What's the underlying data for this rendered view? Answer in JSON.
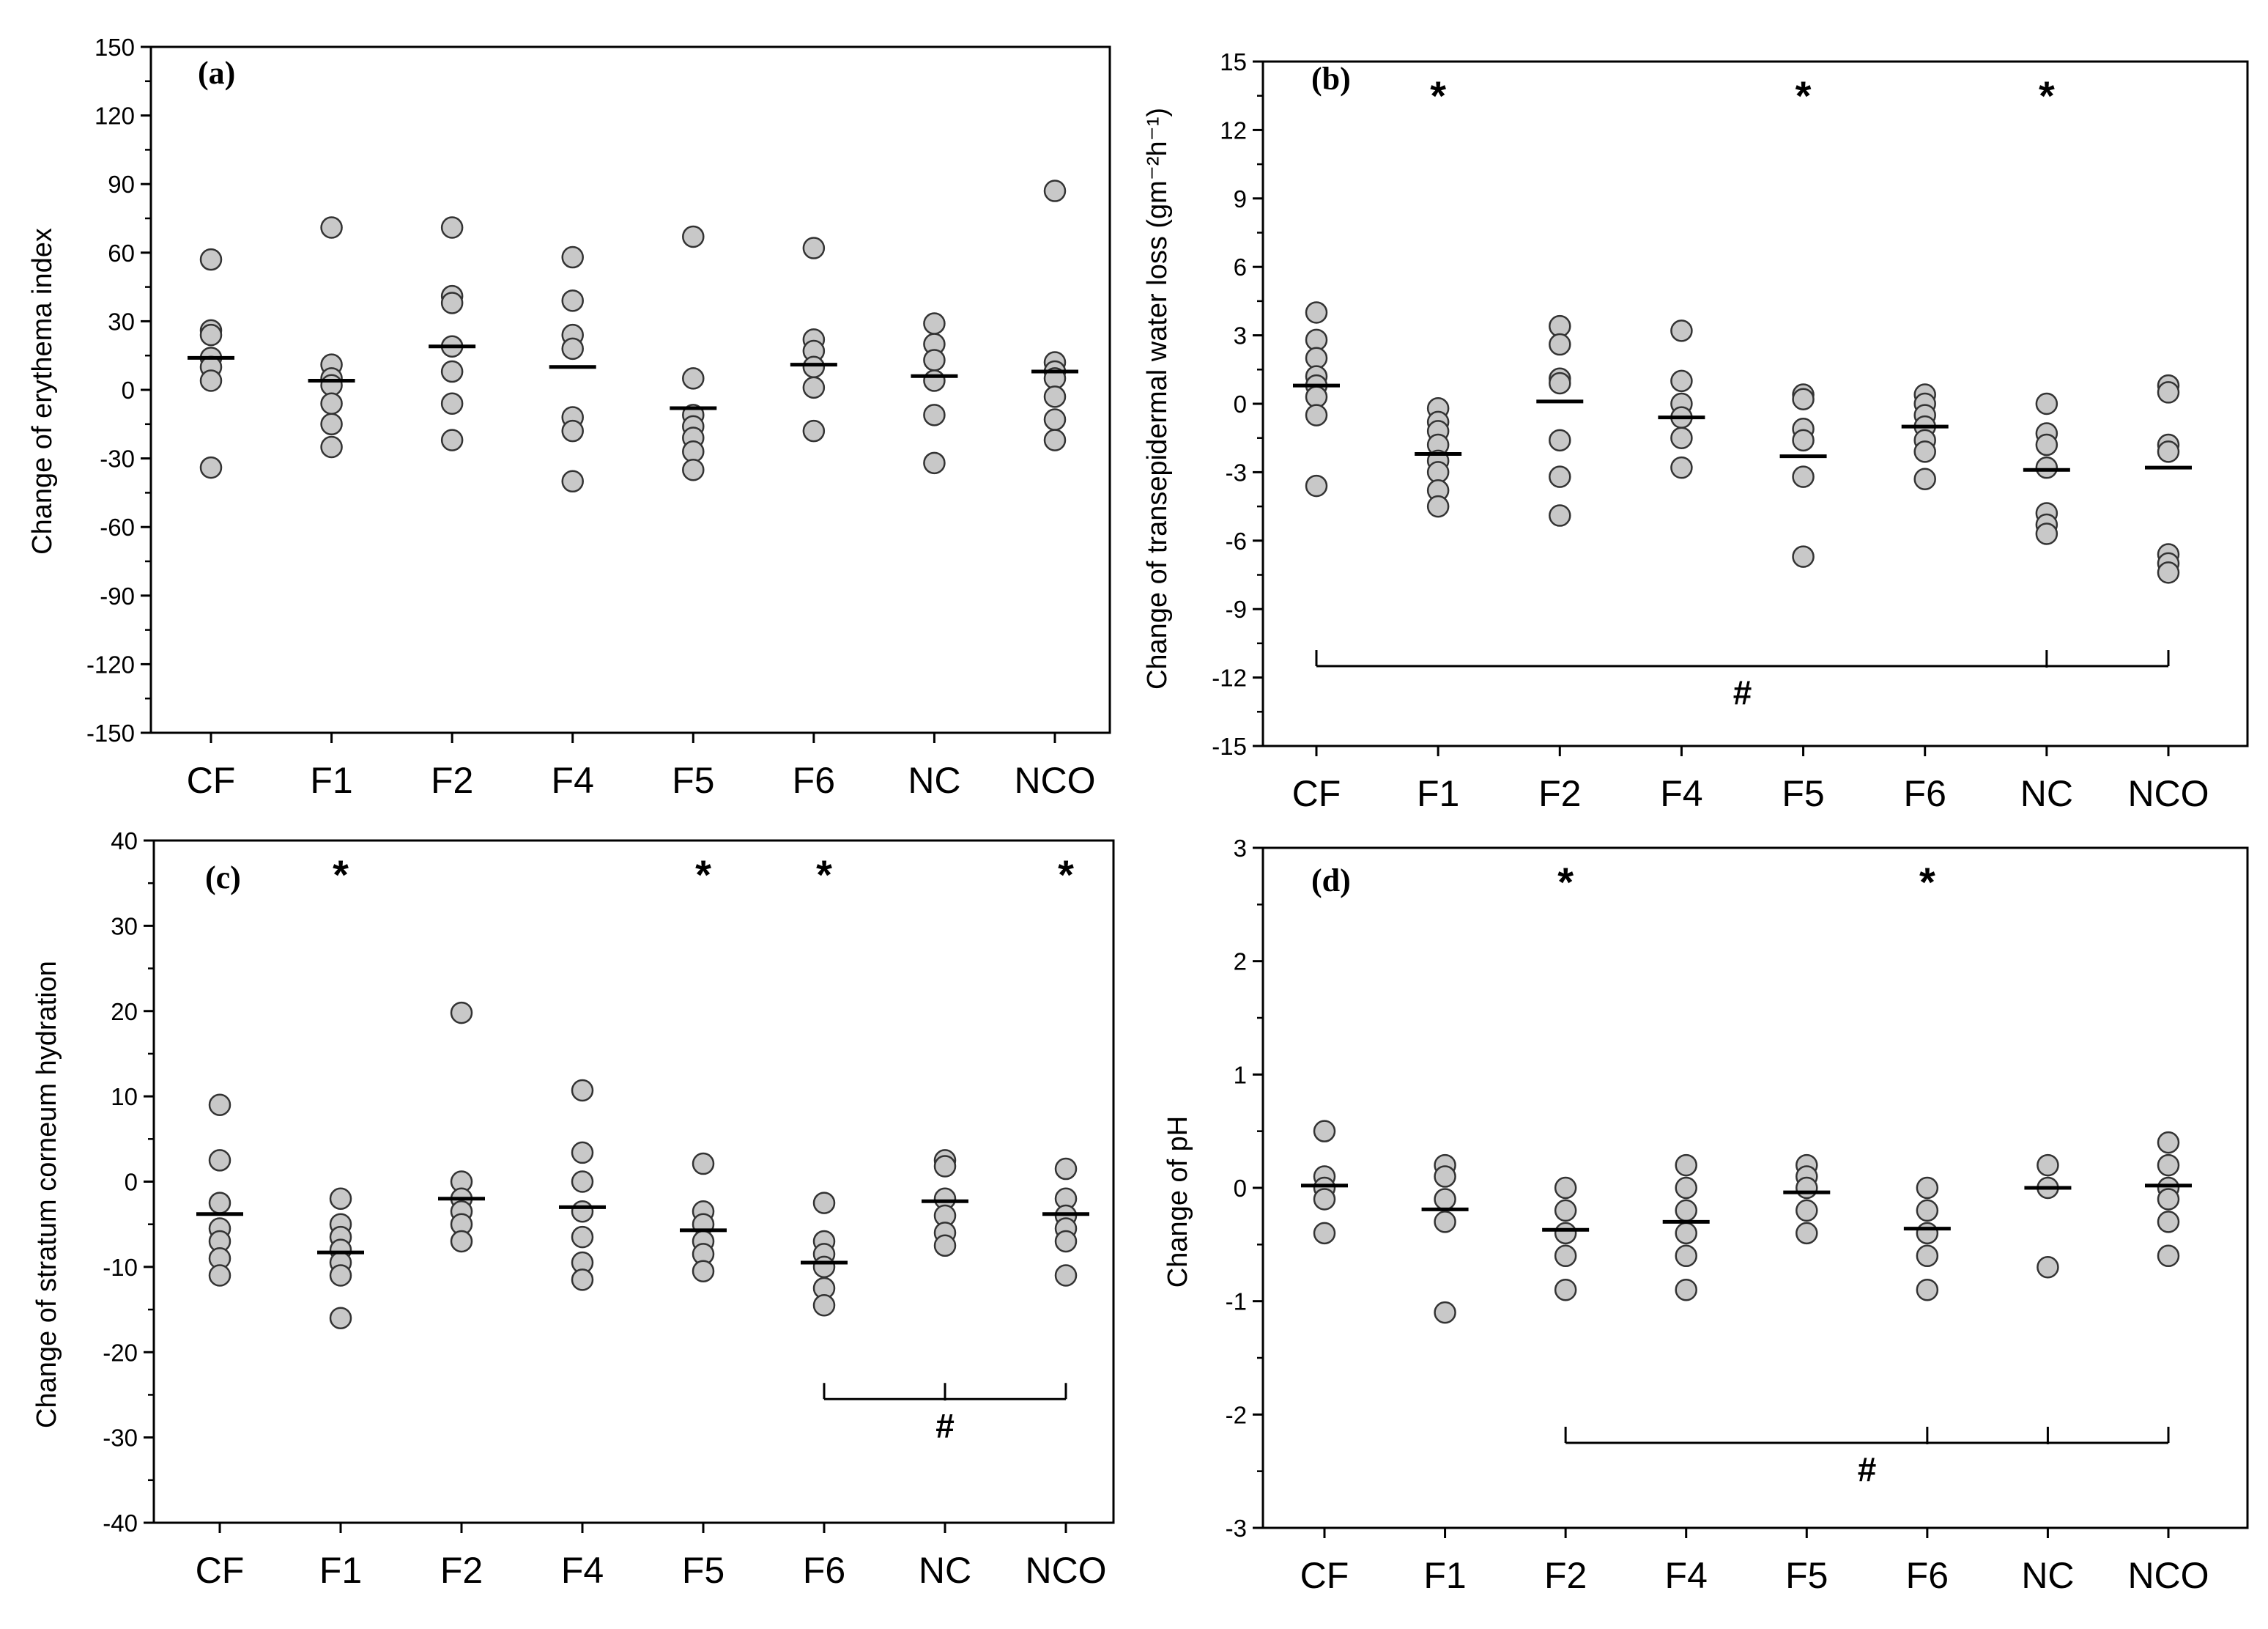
{
  "figure": {
    "background": "#ffffff",
    "point_fill": "#c8c8c8",
    "point_stroke": "#333333"
  },
  "chart_data": [
    {
      "id": "a",
      "type": "scatter",
      "panel_label": "(a)",
      "title": "",
      "xlabel": "",
      "ylabel": "Change of erythema index",
      "categories": [
        "CF",
        "F1",
        "F2",
        "F4",
        "F5",
        "F6",
        "NC",
        "NCO"
      ],
      "ylim": [
        -150,
        150
      ],
      "yticks": [
        -150,
        -120,
        -90,
        -60,
        -30,
        0,
        30,
        60,
        90,
        120,
        150
      ],
      "ytick_labels": [
        "-150",
        "-120",
        "-90",
        "-60",
        "-30",
        "0",
        "30",
        "60",
        "90",
        "120",
        "150"
      ],
      "points": [
        [
          57,
          26,
          24,
          14,
          10,
          4,
          -34
        ],
        [
          71,
          11,
          5,
          2,
          -6,
          -15,
          -25
        ],
        [
          71,
          41,
          38,
          19,
          8,
          -6,
          -22
        ],
        [
          58,
          39,
          24,
          18,
          -12,
          -18,
          -40
        ],
        [
          67,
          5,
          -11,
          -16,
          -21,
          -27,
          -35
        ],
        [
          62,
          22,
          17,
          10,
          1,
          -18
        ],
        [
          29,
          20,
          13,
          4,
          -11,
          -32
        ],
        [
          87,
          12,
          8,
          5,
          -3,
          -13,
          -22
        ]
      ],
      "means": [
        14,
        4,
        19,
        10,
        -8,
        11,
        6,
        8
      ],
      "significance": [
        "",
        "",
        "",
        "",
        "",
        "",
        "",
        ""
      ],
      "brackets": []
    },
    {
      "id": "b",
      "type": "scatter",
      "panel_label": "(b)",
      "title": "",
      "xlabel": "",
      "ylabel": "Change of transepidermal water loss (gm⁻²h⁻¹)",
      "categories": [
        "CF",
        "F1",
        "F2",
        "F4",
        "F5",
        "F6",
        "NC",
        "NCO"
      ],
      "ylim": [
        -15,
        15
      ],
      "yticks": [
        -15,
        -12,
        -9,
        -6,
        -3,
        0,
        3,
        6,
        9,
        12,
        15
      ],
      "ytick_labels": [
        "-15",
        "-12",
        "-9",
        "-6",
        "-3",
        "0",
        "3",
        "6",
        "9",
        "12",
        "15"
      ],
      "points": [
        [
          4.0,
          2.8,
          2.0,
          1.2,
          0.8,
          0.3,
          -0.5,
          -3.6
        ],
        [
          -0.2,
          -0.8,
          -1.2,
          -1.8,
          -2.5,
          -3.0,
          -3.8,
          -4.5
        ],
        [
          3.4,
          2.6,
          1.1,
          0.9,
          -1.6,
          -3.2,
          -4.9
        ],
        [
          3.2,
          1.0,
          0.0,
          -0.6,
          -1.5,
          -2.8
        ],
        [
          0.4,
          0.2,
          -1.1,
          -1.6,
          -3.2,
          -6.7
        ],
        [
          0.4,
          0.0,
          -0.5,
          -1.0,
          -1.6,
          -2.1,
          -3.3
        ],
        [
          0.0,
          -1.3,
          -1.8,
          -2.8,
          -4.8,
          -5.3,
          -5.7
        ],
        [
          0.8,
          0.5,
          -1.8,
          -2.1,
          -6.6,
          -7.0,
          -7.4
        ]
      ],
      "means": [
        0.8,
        -2.2,
        0.1,
        -0.6,
        -2.3,
        -1.0,
        -2.9,
        -2.8
      ],
      "significance": [
        "",
        "*",
        "",
        "",
        "*",
        "",
        "*",
        ""
      ],
      "brackets": [
        {
          "label": "#",
          "y_value": -11.5,
          "anchors": [
            "CF",
            "NC",
            "NCO"
          ]
        }
      ]
    },
    {
      "id": "c",
      "type": "scatter",
      "panel_label": "(c)",
      "title": "",
      "xlabel": "",
      "ylabel": "Change of stratum corneum hydration",
      "categories": [
        "CF",
        "F1",
        "F2",
        "F4",
        "F5",
        "F6",
        "NC",
        "NCO"
      ],
      "ylim": [
        -40,
        40
      ],
      "yticks": [
        -40,
        -30,
        -20,
        -10,
        0,
        10,
        20,
        30,
        40
      ],
      "ytick_labels": [
        "-40",
        "-30",
        "-20",
        "-10",
        "0",
        "10",
        "20",
        "30",
        "40"
      ],
      "points": [
        [
          9.0,
          2.5,
          -2.5,
          -5.5,
          -7.0,
          -9.0,
          -11.0
        ],
        [
          -2.0,
          -5.0,
          -6.5,
          -8.0,
          -9.5,
          -11.0,
          -16.0
        ],
        [
          19.8,
          0.0,
          -2.0,
          -3.5,
          -5.0,
          -7.0
        ],
        [
          10.7,
          3.4,
          0.0,
          -3.5,
          -6.5,
          -9.5,
          -11.5
        ],
        [
          2.1,
          -3.5,
          -5.0,
          -7.0,
          -8.5,
          -10.5
        ],
        [
          -2.5,
          -7.0,
          -8.5,
          -10.0,
          -12.5,
          -14.5
        ],
        [
          2.5,
          1.8,
          -2.0,
          -4.0,
          -6.0,
          -7.5
        ],
        [
          1.5,
          -2.0,
          -4.0,
          -5.5,
          -7.0,
          -11.0
        ]
      ],
      "means": [
        -3.8,
        -8.3,
        -2.0,
        -3.0,
        -5.7,
        -9.5,
        -2.3,
        -3.8
      ],
      "significance": [
        "",
        "*",
        "",
        "",
        "*",
        "*",
        "",
        "*"
      ],
      "brackets": [
        {
          "label": "#",
          "y_value": -25.5,
          "anchors": [
            "F6",
            "NC",
            "NCO"
          ]
        }
      ]
    },
    {
      "id": "d",
      "type": "scatter",
      "panel_label": "(d)",
      "title": "",
      "xlabel": "",
      "ylabel": "Change of pH",
      "categories": [
        "CF",
        "F1",
        "F2",
        "F4",
        "F5",
        "F6",
        "NC",
        "NCO"
      ],
      "ylim": [
        -3,
        3
      ],
      "yticks": [
        -3,
        -2,
        -1,
        0,
        1,
        2,
        3
      ],
      "ytick_labels": [
        "-3",
        "-2",
        "-1",
        "0",
        "1",
        "2",
        "3"
      ],
      "points": [
        [
          0.5,
          0.1,
          0.0,
          -0.1,
          -0.4
        ],
        [
          0.2,
          0.1,
          -0.1,
          -0.3,
          -1.1
        ],
        [
          0.0,
          -0.2,
          -0.4,
          -0.6,
          -0.9
        ],
        [
          0.2,
          0.0,
          -0.2,
          -0.4,
          -0.6,
          -0.9
        ],
        [
          0.2,
          0.1,
          0.0,
          -0.2,
          -0.4
        ],
        [
          0.0,
          -0.2,
          -0.4,
          -0.6,
          -0.9
        ],
        [
          0.2,
          0.0,
          -0.7
        ],
        [
          0.4,
          0.2,
          0.0,
          -0.1,
          -0.3,
          -0.6
        ]
      ],
      "means": [
        0.02,
        -0.19,
        -0.37,
        -0.3,
        -0.04,
        -0.36,
        0.0,
        0.02
      ],
      "significance": [
        "",
        "",
        "*",
        "",
        "",
        "*",
        "",
        ""
      ],
      "brackets": [
        {
          "label": "#",
          "y_value": -2.25,
          "anchors": [
            "F2",
            "F6",
            "NC",
            "NCO"
          ]
        }
      ]
    }
  ]
}
